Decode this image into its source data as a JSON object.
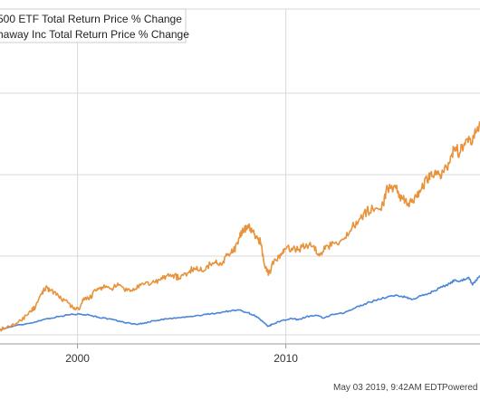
{
  "chart_data": {
    "type": "line",
    "title": "",
    "xlabel": "",
    "ylabel": "",
    "x_ticks": [
      "2000",
      "2010"
    ],
    "grid": true,
    "legend_position": "top-left",
    "series": [
      {
        "name": "500 ETF Total Return Price % Change",
        "color": "#4a86d8",
        "points": [
          [
            1996.3,
            0
          ],
          [
            1997.0,
            8
          ],
          [
            1997.8,
            15
          ],
          [
            1998.5,
            24
          ],
          [
            1999.2,
            30
          ],
          [
            1999.7,
            34
          ],
          [
            2000.2,
            35
          ],
          [
            2000.6,
            33
          ],
          [
            2001.0,
            28
          ],
          [
            2001.5,
            24
          ],
          [
            2002.0,
            19
          ],
          [
            2002.4,
            15
          ],
          [
            2002.8,
            12
          ],
          [
            2003.2,
            14
          ],
          [
            2003.7,
            20
          ],
          [
            2004.3,
            24
          ],
          [
            2005.0,
            27
          ],
          [
            2005.6,
            30
          ],
          [
            2006.2,
            34
          ],
          [
            2006.8,
            38
          ],
          [
            2007.3,
            42
          ],
          [
            2007.8,
            44
          ],
          [
            2008.2,
            38
          ],
          [
            2008.6,
            30
          ],
          [
            2008.9,
            18
          ],
          [
            2009.15,
            7
          ],
          [
            2009.4,
            12
          ],
          [
            2009.8,
            20
          ],
          [
            2010.3,
            25
          ],
          [
            2010.6,
            22
          ],
          [
            2011.0,
            29
          ],
          [
            2011.5,
            32
          ],
          [
            2011.8,
            26
          ],
          [
            2012.3,
            34
          ],
          [
            2012.8,
            37
          ],
          [
            2013.3,
            48
          ],
          [
            2013.8,
            58
          ],
          [
            2014.3,
            66
          ],
          [
            2014.9,
            74
          ],
          [
            2015.4,
            77
          ],
          [
            2015.8,
            73
          ],
          [
            2016.1,
            68
          ],
          [
            2016.5,
            76
          ],
          [
            2016.9,
            82
          ],
          [
            2017.4,
            94
          ],
          [
            2017.9,
            104
          ],
          [
            2018.1,
            112
          ],
          [
            2018.4,
            110
          ],
          [
            2018.8,
            118
          ],
          [
            2018.98,
            101
          ],
          [
            2019.15,
            112
          ],
          [
            2019.34,
            120
          ]
        ]
      },
      {
        "name": "haway Inc Total Return Price % Change",
        "color": "#e8923a",
        "points": [
          [
            1996.3,
            0
          ],
          [
            1996.8,
            6
          ],
          [
            1997.3,
            20
          ],
          [
            1997.7,
            40
          ],
          [
            1998.0,
            50
          ],
          [
            1998.3,
            80
          ],
          [
            1998.5,
            96
          ],
          [
            1998.7,
            90
          ],
          [
            1999.0,
            78
          ],
          [
            1999.4,
            66
          ],
          [
            1999.8,
            50
          ],
          [
            2000.1,
            45
          ],
          [
            2000.3,
            66
          ],
          [
            2000.6,
            72
          ],
          [
            2000.9,
            88
          ],
          [
            2001.2,
            96
          ],
          [
            2001.6,
            92
          ],
          [
            2002.0,
            100
          ],
          [
            2002.4,
            88
          ],
          [
            2002.8,
            92
          ],
          [
            2003.2,
            102
          ],
          [
            2003.6,
            106
          ],
          [
            2004.0,
            112
          ],
          [
            2004.3,
            122
          ],
          [
            2004.6,
            124
          ],
          [
            2004.9,
            116
          ],
          [
            2005.3,
            128
          ],
          [
            2005.6,
            140
          ],
          [
            2005.9,
            134
          ],
          [
            2006.2,
            142
          ],
          [
            2006.6,
            152
          ],
          [
            2006.9,
            150
          ],
          [
            2007.2,
            168
          ],
          [
            2007.5,
            176
          ],
          [
            2007.8,
            208
          ],
          [
            2008.0,
            226
          ],
          [
            2008.2,
            236
          ],
          [
            2008.4,
            222
          ],
          [
            2008.6,
            208
          ],
          [
            2008.8,
            200
          ],
          [
            2009.0,
            146
          ],
          [
            2009.2,
            126
          ],
          [
            2009.5,
            160
          ],
          [
            2009.8,
            168
          ],
          [
            2010.0,
            182
          ],
          [
            2010.3,
            184
          ],
          [
            2010.6,
            180
          ],
          [
            2011.0,
            194
          ],
          [
            2011.3,
            188
          ],
          [
            2011.6,
            172
          ],
          [
            2011.9,
            182
          ],
          [
            2012.3,
            196
          ],
          [
            2012.8,
            204
          ],
          [
            2013.2,
            232
          ],
          [
            2013.6,
            252
          ],
          [
            2013.9,
            268
          ],
          [
            2014.3,
            274
          ],
          [
            2014.7,
            282
          ],
          [
            2014.9,
            322
          ],
          [
            2015.3,
            320
          ],
          [
            2015.6,
            296
          ],
          [
            2015.9,
            286
          ],
          [
            2016.2,
            300
          ],
          [
            2016.5,
            316
          ],
          [
            2016.8,
            340
          ],
          [
            2017.0,
            358
          ],
          [
            2017.3,
            352
          ],
          [
            2017.6,
            356
          ],
          [
            2017.9,
            380
          ],
          [
            2018.1,
            410
          ],
          [
            2018.4,
            402
          ],
          [
            2018.7,
            432
          ],
          [
            2018.98,
            424
          ],
          [
            2019.15,
            448
          ],
          [
            2019.34,
            470
          ]
        ]
      }
    ]
  },
  "footer": {
    "timestamp": "May 03 2019, 9:42AM EDT.",
    "powered": "Powered b"
  }
}
